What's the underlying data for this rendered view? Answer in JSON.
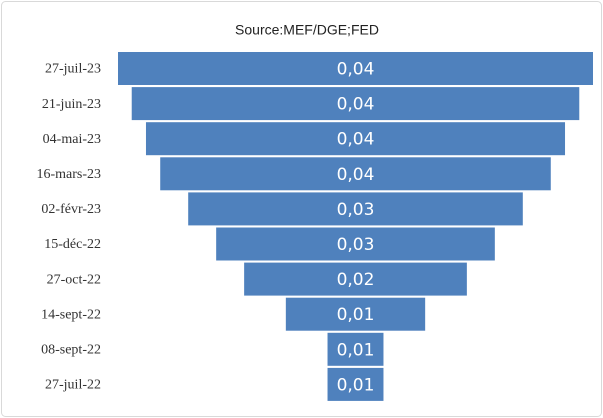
{
  "chart_data": {
    "type": "funnel",
    "title": "Source:MEF/DGE;FED",
    "categories": [
      "27-juil-23",
      "21-juin-23",
      "04-mai-23",
      "16-mars-23",
      "02-févr-23",
      "15-déc-22",
      "27-oct-22",
      "14-sept-22",
      "08-sept-22",
      "27-juil-22"
    ],
    "values": [
      0.045,
      0.0424,
      0.0397,
      0.037,
      0.0317,
      0.0264,
      0.0211,
      0.0132,
      0.0053,
      0.0053
    ],
    "value_labels": [
      "0,04",
      "0,04",
      "0,04",
      "0,04",
      "0,03",
      "0,03",
      "0,02",
      "0,01",
      "0,01",
      "0,01"
    ],
    "color": "#4f81bd"
  }
}
